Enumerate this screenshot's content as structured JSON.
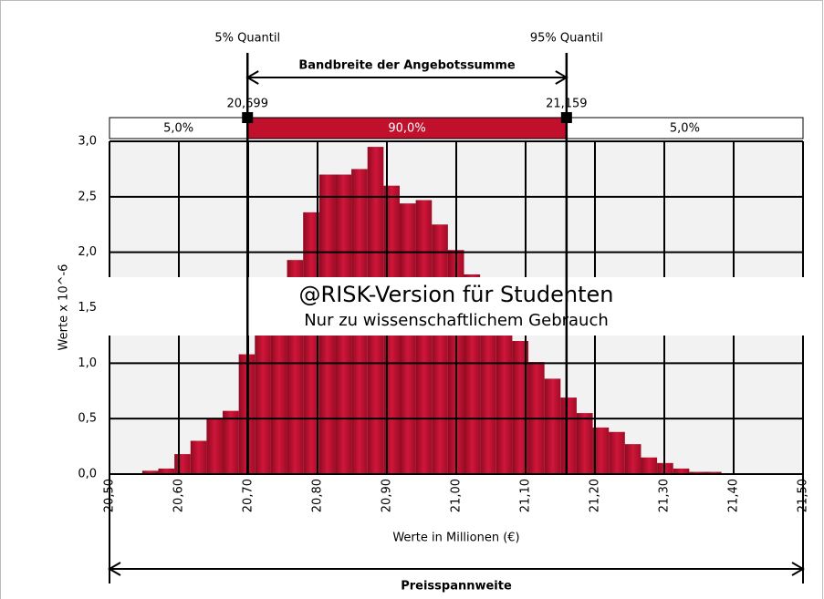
{
  "chart_data": {
    "type": "histogram",
    "title": "Bandbreite der Angebotssumme",
    "watermark": "@RISK-Version für Studenten",
    "watermark_subtitle": "Nur zu wissenschaftlichem Gebrauch",
    "xlabel": "Werte in Millionen (€)",
    "ylabel": "Werte x 10^-6",
    "range_label": "Preisspannweite",
    "color": "#c0102c",
    "grid": true,
    "bins": [
      20.524,
      20.5472,
      20.5704,
      20.5936,
      20.6168,
      20.64,
      20.6632,
      20.6864,
      20.7096,
      20.7328,
      20.756,
      20.7792,
      20.8024,
      20.8256,
      20.8488,
      20.872,
      20.8952,
      20.9184,
      20.9416,
      20.9648,
      20.988,
      21.0112,
      21.0344,
      21.0576,
      21.0808,
      21.104,
      21.1272,
      21.1504,
      21.1736,
      21.1968,
      21.22,
      21.2432,
      21.2664,
      21.2896,
      21.3128,
      21.336,
      21.3592,
      21.3824,
      21.4056
    ],
    "values": [
      0.005,
      0.03,
      0.05,
      0.18,
      0.3,
      0.5,
      0.57,
      1.08,
      1.35,
      1.6,
      1.93,
      2.36,
      2.7,
      2.7,
      2.75,
      2.95,
      2.6,
      2.44,
      2.47,
      2.25,
      2.02,
      1.8,
      1.6,
      1.4,
      1.2,
      1.01,
      0.86,
      0.69,
      0.55,
      0.42,
      0.38,
      0.27,
      0.15,
      0.1,
      0.05,
      0.02,
      0.02,
      0.005
    ],
    "xlim": [
      20.5,
      21.5
    ],
    "xticks": [
      {
        "value": 20.5,
        "label": "20,50"
      },
      {
        "value": 20.6,
        "label": "20,60"
      },
      {
        "value": 20.7,
        "label": "20,70"
      },
      {
        "value": 20.8,
        "label": "20,80"
      },
      {
        "value": 20.9,
        "label": "20,90"
      },
      {
        "value": 21.0,
        "label": "21,00"
      },
      {
        "value": 21.1,
        "label": "21,10"
      },
      {
        "value": 21.2,
        "label": "21,20"
      },
      {
        "value": 21.3,
        "label": "21,30"
      },
      {
        "value": 21.4,
        "label": "21,40"
      },
      {
        "value": 21.5,
        "label": "21,50"
      }
    ],
    "ylim": [
      0,
      3
    ],
    "yticks": [
      {
        "value": 0,
        "label": "0,0"
      },
      {
        "value": 0.5,
        "label": "0,5"
      },
      {
        "value": 1,
        "label": "1,0"
      },
      {
        "value": 1.5,
        "label": "1,5"
      },
      {
        "value": 2,
        "label": "2,0"
      },
      {
        "value": 2.5,
        "label": "2,5"
      },
      {
        "value": 3,
        "label": "3,0"
      }
    ],
    "quantiles": [
      {
        "name": "5% Quantil",
        "value": 20.699,
        "label": "20,699"
      },
      {
        "name": "95% Quantil",
        "value": 21.159,
        "label": "21,159"
      }
    ],
    "bands": [
      {
        "value": 5,
        "label": "5,0%"
      },
      {
        "value": 90,
        "label": "90,0%"
      },
      {
        "value": 5,
        "label": "5,0%"
      }
    ]
  }
}
